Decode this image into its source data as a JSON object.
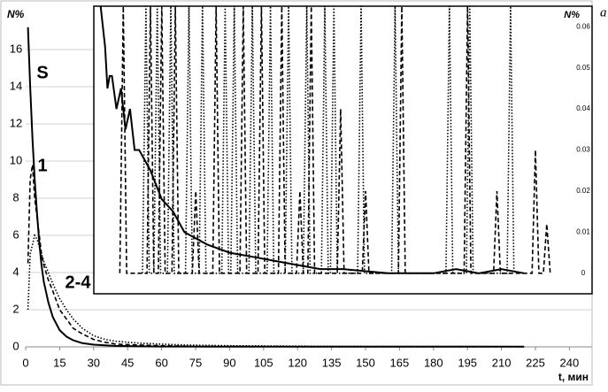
{
  "chart_data": [
    {
      "type": "line",
      "y_label": "N%",
      "x_label": "t, мин",
      "panel_label": "a",
      "x": [
        1,
        2,
        3,
        4,
        5,
        6,
        7,
        8,
        10,
        12,
        15,
        18,
        21,
        25,
        30,
        35,
        40,
        50,
        60,
        70,
        80,
        90,
        100,
        120,
        140,
        160,
        180,
        200,
        220
      ],
      "series": [
        {
          "name": "S",
          "color": "#000000",
          "style": "solid",
          "values": [
            17.2,
            14,
            11.2,
            9,
            7.2,
            5.6,
            4.4,
            3.5,
            2.4,
            1.6,
            0.9,
            0.55,
            0.35,
            0.2,
            0.12,
            0.08,
            0.05,
            0.03,
            0.02,
            0.02,
            0.01,
            0.01,
            0.01,
            0.01,
            0.01,
            0.01,
            0.01,
            0.01,
            0.01
          ]
        },
        {
          "name": "1",
          "color": "#000000",
          "style": "dashed",
          "values": [
            4.5,
            9,
            9.8,
            8,
            7,
            6,
            5,
            4.4,
            3.6,
            3,
            2,
            1.5,
            1,
            0.7,
            0.4,
            0.25,
            0.15,
            0.1,
            0.06,
            0.04,
            0.03,
            0.02,
            0.02,
            0.01,
            0.01,
            0.01,
            0.01,
            0.01,
            0.01
          ]
        },
        {
          "name": "2-4",
          "color": "#000000",
          "style": "dotted",
          "values": [
            2,
            5,
            5.5,
            6,
            5.8,
            5.4,
            5,
            4.6,
            4,
            3.4,
            2.6,
            2,
            1.5,
            1,
            0.6,
            0.4,
            0.3,
            0.2,
            0.15,
            0.1,
            0.08,
            0.06,
            0.05,
            0.04,
            0.03,
            0.02,
            0.02,
            0.02,
            0.01
          ]
        }
      ],
      "xlim": [
        0,
        250
      ],
      "ylim": [
        0,
        18
      ],
      "xticks": [
        0,
        15,
        30,
        45,
        60,
        75,
        90,
        105,
        120,
        135,
        150,
        165,
        180,
        195,
        210,
        225,
        240
      ],
      "yticks": [
        0,
        2,
        4,
        6,
        8,
        10,
        12,
        14,
        16
      ],
      "grid": true
    },
    {
      "type": "line",
      "y2_label": "N%",
      "series": [
        {
          "color": "#000000",
          "style": "solid",
          "x": [
            33,
            35,
            36,
            37,
            38,
            40,
            42,
            44,
            46,
            48,
            50,
            55,
            60,
            65,
            70,
            80,
            90,
            100,
            110,
            120,
            130,
            140,
            150,
            160,
            170,
            180,
            190,
            200,
            210,
            220
          ],
          "values": [
            0.065,
            0.055,
            0.045,
            0.048,
            0.048,
            0.04,
            0.045,
            0.035,
            0.04,
            0.03,
            0.03,
            0.025,
            0.018,
            0.015,
            0.01,
            0.007,
            0.005,
            0.004,
            0.003,
            0.002,
            0.001,
            0.001,
            0.0005,
            0,
            0,
            0,
            0.001,
            0,
            0.001,
            0
          ]
        },
        {
          "color": "#000000",
          "style": "dashed",
          "x": [
            41.5,
            43,
            44.5,
            53.5,
            55,
            56.5,
            58.5,
            60,
            61.5,
            64.5,
            66,
            67.5,
            73.5,
            75,
            76.5,
            82.5,
            84,
            85.5,
            94.5,
            96,
            97.5,
            102.5,
            104,
            105.5,
            111.5,
            113,
            114.5,
            119.5,
            121,
            122.5,
            124.5,
            126,
            127.5,
            137.5,
            139,
            140.5,
            148.5,
            150,
            151.5,
            164.5,
            166,
            167.5,
            193.5,
            195,
            196.5,
            206.5,
            208,
            209.5,
            223.5,
            225,
            226.5,
            228.5,
            230,
            231.5
          ],
          "values": [
            0,
            0.065,
            0,
            0,
            0.065,
            0,
            0,
            0.065,
            0,
            0,
            0.065,
            0,
            0,
            0.02,
            0,
            0,
            0.065,
            0,
            0,
            0.065,
            0,
            0,
            0.065,
            0,
            0,
            0.065,
            0,
            0,
            0.02,
            0,
            0,
            0.065,
            0,
            0,
            0.04,
            0,
            0,
            0.02,
            0,
            0,
            0.065,
            0,
            0,
            0.065,
            0,
            0,
            0.02,
            0,
            0,
            0.03,
            0,
            0,
            0.012,
            0
          ]
        },
        {
          "color": "#000000",
          "style": "dotted",
          "x": [
            51.5,
            53,
            54.5,
            56.5,
            58,
            59.5,
            62.5,
            64,
            65.5,
            70.5,
            72,
            73.5,
            76.5,
            78,
            79.5,
            86.5,
            88,
            89.5,
            90.5,
            92,
            93.5,
            98.5,
            100,
            101.5,
            106.5,
            108,
            109.5,
            114.5,
            116,
            117.5,
            122.5,
            124,
            125.5,
            130.5,
            132,
            133.5,
            134.5,
            136,
            137.5,
            146.5,
            148,
            149.5,
            161.5,
            163,
            164.5,
            185.5,
            187,
            188.5,
            194.5,
            196,
            197.5,
            212.5,
            214,
            215.5
          ],
          "values": [
            0,
            0.065,
            0,
            0,
            0.065,
            0,
            0,
            0.065,
            0,
            0,
            0.065,
            0,
            0,
            0.065,
            0,
            0,
            0.065,
            0,
            0,
            0.065,
            0,
            0,
            0.065,
            0,
            0,
            0.065,
            0,
            0,
            0.065,
            0,
            0,
            0.065,
            0,
            0,
            0.065,
            0,
            0,
            0.065,
            0,
            0,
            0.065,
            0,
            0,
            0.065,
            0,
            0,
            0.065,
            0,
            0,
            0.065,
            0,
            0,
            0.065,
            0
          ]
        }
      ],
      "xlim": [
        30,
        250
      ],
      "y2lim": [
        -0.005,
        0.065
      ],
      "y2ticks": [
        0,
        0.01,
        0.02,
        0.03,
        0.04,
        0.05,
        0.06
      ]
    }
  ]
}
